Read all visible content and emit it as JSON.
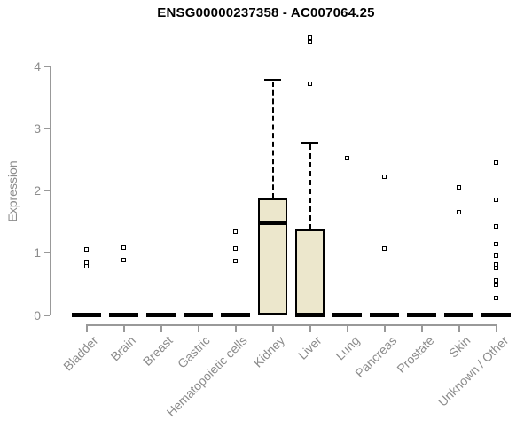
{
  "chart_data": {
    "type": "boxplot",
    "title": "ENSG00000237358 - AC007064.25",
    "ylabel": "Expression",
    "xlabel": "",
    "ylim": [
      0,
      4.6
    ],
    "yticks": [
      0,
      1,
      2,
      3,
      4
    ],
    "grid": false,
    "legend": false,
    "categories": [
      "Bladder",
      "Brain",
      "Breast",
      "Gastric",
      "Hematopoietic cells",
      "Kidney",
      "Liver",
      "Lung",
      "Pancreas",
      "Prostate",
      "Skin",
      "Unknown / Other"
    ],
    "series": [
      {
        "category": "Bladder",
        "q1": 0,
        "median": 0,
        "q3": 0,
        "whisker_low": 0,
        "whisker_high": 0,
        "outliers": [
          1.06,
          0.84,
          0.78
        ]
      },
      {
        "category": "Brain",
        "q1": 0,
        "median": 0,
        "q3": 0,
        "whisker_low": 0,
        "whisker_high": 0,
        "outliers": [
          1.09,
          0.89
        ]
      },
      {
        "category": "Breast",
        "q1": 0,
        "median": 0,
        "q3": 0,
        "whisker_low": 0,
        "whisker_high": 0,
        "outliers": []
      },
      {
        "category": "Gastric",
        "q1": 0,
        "median": 0,
        "q3": 0,
        "whisker_low": 0,
        "whisker_high": 0,
        "outliers": []
      },
      {
        "category": "Hematopoietic cells",
        "q1": 0,
        "median": 0,
        "q3": 0,
        "whisker_low": 0,
        "whisker_high": 0,
        "outliers": [
          1.34,
          1.07,
          0.87
        ]
      },
      {
        "category": "Kidney",
        "q1": 0,
        "median": 1.49,
        "q3": 1.87,
        "whisker_low": 0,
        "whisker_high": 3.79,
        "outliers": []
      },
      {
        "category": "Liver",
        "q1": 0,
        "median": 0,
        "q3": 1.37,
        "whisker_low": 0,
        "whisker_high": 2.77,
        "outliers": [
          4.46,
          4.39,
          3.72
        ]
      },
      {
        "category": "Lung",
        "q1": 0,
        "median": 0,
        "q3": 0,
        "whisker_low": 0,
        "whisker_high": 0,
        "outliers": [
          2.53
        ]
      },
      {
        "category": "Pancreas",
        "q1": 0,
        "median": 0,
        "q3": 0,
        "whisker_low": 0,
        "whisker_high": 0,
        "outliers": [
          2.22,
          1.07
        ]
      },
      {
        "category": "Prostate",
        "q1": 0,
        "median": 0,
        "q3": 0,
        "whisker_low": 0,
        "whisker_high": 0,
        "outliers": []
      },
      {
        "category": "Skin",
        "q1": 0,
        "median": 0,
        "q3": 0,
        "whisker_low": 0,
        "whisker_high": 0,
        "outliers": [
          2.05,
          1.66
        ]
      },
      {
        "category": "Unknown / Other",
        "q1": 0,
        "median": 0,
        "q3": 0,
        "whisker_low": 0,
        "whisker_high": 0,
        "outliers": [
          2.46,
          1.85,
          1.42,
          1.14,
          0.96,
          0.81,
          0.75,
          0.55,
          0.48,
          0.27
        ]
      }
    ],
    "colors": {
      "box_fill": "#ece7cc",
      "box_border": "#000000",
      "axis_line": "#999999",
      "axis_text": "#8c8c8c",
      "title_text": "#000000",
      "background": "#ffffff"
    }
  }
}
